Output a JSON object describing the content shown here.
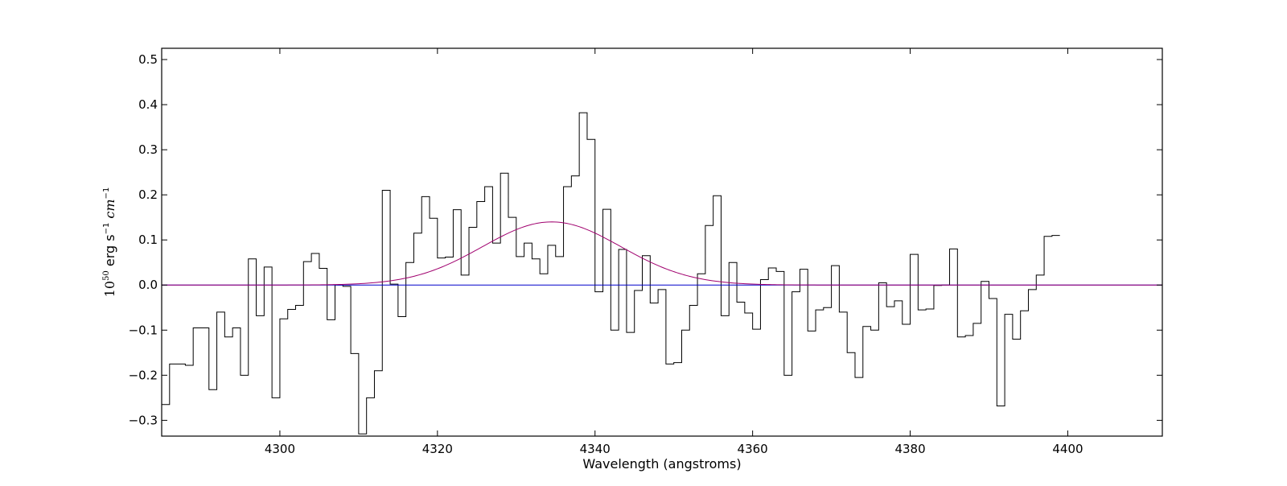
{
  "chart_data": {
    "type": "line",
    "xlabel": "Wavelength (angstroms)",
    "ylabel": {
      "base": "10",
      "exp": "50",
      "unit1": " erg s",
      "unit1_exp": "−1",
      "unit2": " cm",
      "unit2_exp": "−1"
    },
    "xlim": [
      4285,
      4412
    ],
    "ylim": [
      -0.335,
      0.525
    ],
    "xticks": [
      4300,
      4320,
      4340,
      4360,
      4380,
      4400
    ],
    "yticks": [
      -0.3,
      -0.2,
      -0.1,
      0.0,
      0.1,
      0.2,
      0.3,
      0.4,
      0.5
    ],
    "ytick_labels": [
      "−0.3",
      "−0.2",
      "−0.1",
      "0.0",
      "0.1",
      "0.2",
      "0.3",
      "0.4",
      "0.5"
    ],
    "grid": false,
    "series": [
      {
        "style": "steps",
        "color": "#000000",
        "bin_start": 4285,
        "bin_width": 1.0,
        "values": [
          -0.265,
          -0.175,
          -0.175,
          -0.178,
          -0.095,
          -0.095,
          -0.232,
          -0.06,
          -0.115,
          -0.095,
          -0.2,
          0.058,
          -0.068,
          0.04,
          -0.25,
          -0.075,
          -0.054,
          -0.045,
          0.052,
          0.07,
          0.037,
          -0.077,
          0.0,
          -0.003,
          -0.152,
          -0.33,
          -0.25,
          -0.19,
          0.21,
          0.002,
          -0.07,
          0.05,
          0.115,
          0.196,
          0.148,
          0.06,
          0.062,
          0.167,
          0.022,
          0.128,
          0.185,
          0.218,
          0.093,
          0.248,
          0.15,
          0.063,
          0.093,
          0.058,
          0.025,
          0.088,
          0.063,
          0.218,
          0.242,
          0.382,
          0.323,
          -0.015,
          0.168,
          -0.1,
          0.079,
          -0.105,
          -0.012,
          0.065,
          -0.04,
          -0.01,
          -0.175,
          -0.172,
          -0.1,
          -0.045,
          0.025,
          0.132,
          0.198,
          -0.068,
          0.05,
          -0.038,
          -0.062,
          -0.098,
          0.012,
          0.038,
          0.03,
          -0.2,
          -0.015,
          0.035,
          -0.102,
          -0.055,
          -0.05,
          0.043,
          -0.06,
          -0.15,
          -0.205,
          -0.092,
          -0.1,
          0.005,
          -0.048,
          -0.035,
          -0.087,
          0.068,
          -0.055,
          -0.053,
          -0.001,
          0.0,
          0.08,
          -0.115,
          -0.112,
          -0.085,
          0.008,
          -0.03,
          -0.268,
          -0.065,
          -0.12,
          -0.057,
          -0.01,
          0.022,
          0.108,
          0.11
        ]
      },
      {
        "style": "line",
        "color": "#0000cc",
        "model": "constant",
        "value": 0.0
      },
      {
        "style": "line",
        "color": "#a0006e",
        "model": "gaussian",
        "amplitude": 0.14,
        "center": 4334.5,
        "sigma": 8.8,
        "baseline": 0.0
      }
    ]
  }
}
